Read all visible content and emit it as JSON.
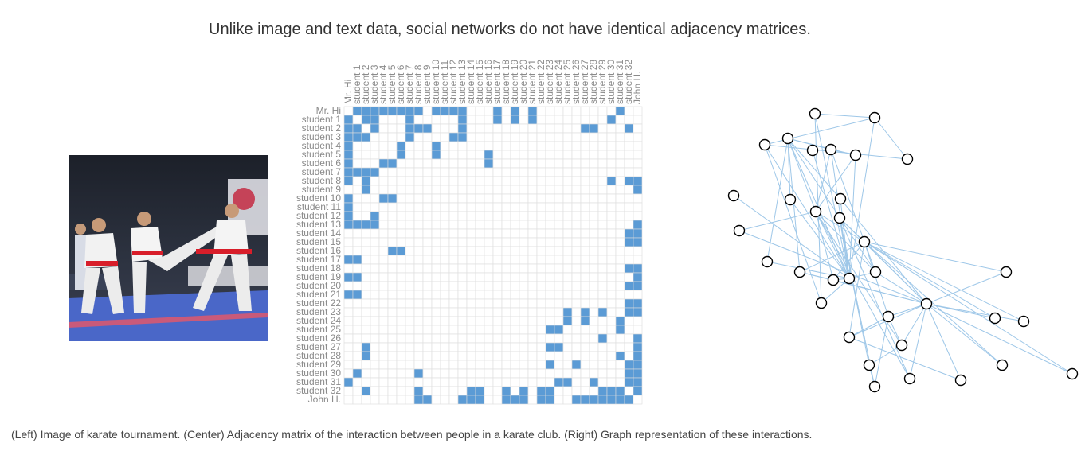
{
  "title": "Unlike image and text data, social networks do not have identical adjacency matrices.",
  "caption": "(Left) Image of karate tournament. (Center) Adjacency matrix of the interaction between people in a karate club. (Right) Graph representation of these interactions.",
  "photo": {
    "description_icon": "karate-photo",
    "colors": {
      "mat": "#4a67c8",
      "mat_edge": "#c95a7a",
      "gi": "#f2f2f2",
      "belt": "#d81e2a",
      "crowd": "#2b2f3a"
    }
  },
  "matrix": {
    "labels": [
      "Mr. Hi",
      "student 1",
      "student 2",
      "student 3",
      "student 4",
      "student 5",
      "student 6",
      "student 7",
      "student 8",
      "student 9",
      "student 10",
      "student 11",
      "student 12",
      "student 13",
      "student 14",
      "student 15",
      "student 16",
      "student 17",
      "student 18",
      "student 19",
      "student 20",
      "student 21",
      "student 22",
      "student 23",
      "student 24",
      "student 25",
      "student 26",
      "student 27",
      "student 28",
      "student 29",
      "student 30",
      "student 31",
      "student 32",
      "John H."
    ],
    "filled_color": "#5b9bd5",
    "empty_color": "#ffffff",
    "grid_color": "#dddddd"
  },
  "graph": {
    "edge_color": "#9ec7e8",
    "node_fill": "#ffffff",
    "node_stroke": "#000000"
  }
}
